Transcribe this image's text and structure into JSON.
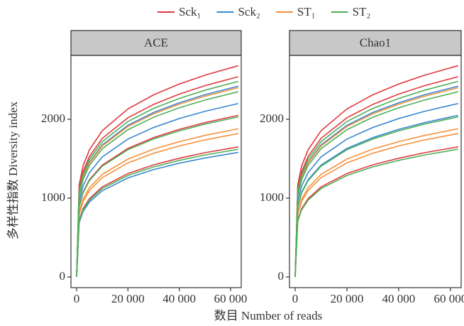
{
  "chart_data": [
    {
      "type": "line",
      "title": "ACE",
      "xlabel": "数目 Number of reads",
      "ylabel": "多样性指数 Diversity index",
      "x": [
        0,
        1000,
        2500,
        5000,
        10000,
        20000,
        30000,
        40000,
        50000,
        63000
      ],
      "xlim": [
        -2200,
        64150
      ],
      "ylim": [
        -135,
        2810
      ],
      "xticks": [
        0,
        {
          "value": 20000,
          "label": "20 000"
        },
        {
          "value": 40000,
          "label": "40 000"
        },
        {
          "value": 60000,
          "label": "60 000"
        }
      ],
      "yticks": [
        0,
        1000,
        2000
      ],
      "series": [
        {
          "name": "Sck₁",
          "color": "#e0393e",
          "values": [
            [
              0,
              1168,
              1407,
              1613,
              1855,
              2131,
              2310,
              2447,
              2559,
              2680
            ],
            [
              0,
              1107,
              1334,
              1529,
              1758,
              2019,
              2189,
              2319,
              2426,
              2540
            ],
            [
              0,
              894,
              1076,
              1234,
              1419,
              1630,
              1767,
              1872,
              1958,
              2050
            ],
            [
              0,
              719,
              866,
              993,
              1142,
              1312,
              1422,
              1506,
              1576,
              1650
            ]
          ]
        },
        {
          "name": "Sck₂",
          "color": "#3a87d0",
          "values": [
            [
              0,
              1055,
              1271,
              1457,
              1675,
              1924,
              2086,
              2209,
              2311,
              2420
            ],
            [
              0,
              959,
              1155,
              1324,
              1522,
              1749,
              1896,
              2009,
              2101,
              2200
            ],
            [
              0,
              689,
              830,
              951,
              1093,
              1256,
              1362,
              1443,
              1509,
              1580
            ]
          ]
        },
        {
          "name": "ST₁",
          "color": "#f5913b",
          "values": [
            [
              0,
              1046,
              1260,
              1445,
              1661,
              1908,
              2069,
              2191,
              2292,
              2400
            ],
            [
              0,
              820,
              987,
              1132,
              1301,
              1495,
              1621,
              1716,
              1795,
              1880
            ],
            [
              0,
              794,
              956,
              1096,
              1259,
              1447,
              1569,
              1662,
              1738,
              1820
            ]
          ]
        },
        {
          "name": "ST₂",
          "color": "#4daf5a",
          "values": [
            [
              0,
              1081,
              1302,
              1493,
              1716,
              1972,
              2138,
              2264,
              2368,
              2480
            ],
            [
              0,
              1025,
              1234,
              1415,
              1626,
              1868,
              2026,
              2146,
              2244,
              2350
            ],
            [
              0,
              885,
              1066,
              1222,
              1405,
              1614,
              1750,
              1853,
              1939,
              2030
            ],
            [
              0,
              706,
              851,
              975,
              1121,
              1288,
              1396,
              1479,
              1547,
              1620
            ]
          ]
        }
      ]
    },
    {
      "type": "line",
      "title": "Chao1",
      "x": [
        0,
        1000,
        2500,
        5000,
        10000,
        20000,
        30000,
        40000,
        50000,
        63000
      ],
      "xlim": [
        -2200,
        64150
      ],
      "ylim": [
        -135,
        2810
      ],
      "xticks": [
        0,
        {
          "value": 20000,
          "label": "20 000"
        },
        {
          "value": 40000,
          "label": "40 000"
        },
        {
          "value": 60000,
          "label": "60 000"
        }
      ],
      "yticks": [
        0,
        1000,
        2000
      ],
      "series": [
        {
          "name": "Sck₁",
          "color": "#e0393e",
          "values": [
            [
              0,
              1168,
              1407,
              1613,
              1855,
              2131,
              2310,
              2447,
              2559,
              2680
            ],
            [
              0,
              1107,
              1334,
              1529,
              1758,
              2019,
              2189,
              2319,
              2426,
              2540
            ],
            [
              0,
              719,
              866,
              993,
              1142,
              1312,
              1422,
              1506,
              1576,
              1650
            ]
          ]
        },
        {
          "name": "Sck₂",
          "color": "#3a87d0",
          "values": [
            [
              0,
              1055,
              1271,
              1457,
              1675,
              1924,
              2086,
              2209,
              2311,
              2420
            ],
            [
              0,
              959,
              1155,
              1324,
              1522,
              1749,
              1896,
              2009,
              2101,
              2200
            ],
            [
              0,
              894,
              1076,
              1234,
              1419,
              1630,
              1767,
              1872,
              1958,
              2050
            ]
          ]
        },
        {
          "name": "ST₁",
          "color": "#f5913b",
          "values": [
            [
              0,
              1046,
              1260,
              1445,
              1661,
              1908,
              2069,
              2191,
              2292,
              2400
            ],
            [
              0,
              820,
              987,
              1132,
              1301,
              1495,
              1621,
              1716,
              1795,
              1880
            ],
            [
              0,
              794,
              956,
              1096,
              1259,
              1447,
              1569,
              1662,
              1738,
              1820
            ]
          ]
        },
        {
          "name": "ST₂",
          "color": "#4daf5a",
          "values": [
            [
              0,
              1081,
              1302,
              1493,
              1716,
              1972,
              2138,
              2264,
              2368,
              2480
            ],
            [
              0,
              1025,
              1234,
              1415,
              1626,
              1868,
              2026,
              2146,
              2244,
              2350
            ],
            [
              0,
              885,
              1066,
              1222,
              1405,
              1614,
              1750,
              1853,
              1939,
              2030
            ],
            [
              0,
              706,
              851,
              975,
              1121,
              1288,
              1396,
              1479,
              1547,
              1620
            ]
          ]
        }
      ]
    }
  ]
}
